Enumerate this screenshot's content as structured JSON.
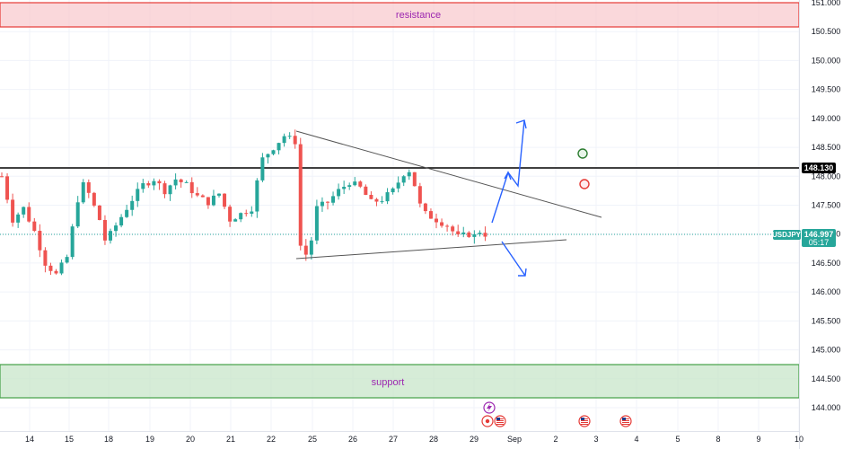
{
  "chart_data": {
    "type": "candlestick",
    "symbol": "USDJPY",
    "y_range": [
      143.7,
      151.1
    ],
    "y_ticks": [
      "151.000",
      "150.500",
      "150.000",
      "149.500",
      "149.000",
      "148.500",
      "148.000",
      "147.500",
      "147.000",
      "146.500",
      "146.000",
      "145.500",
      "145.000",
      "144.500",
      "144.000"
    ],
    "x_ticks": [
      "14",
      "15",
      "18",
      "19",
      "20",
      "21",
      "22",
      "25",
      "26",
      "27",
      "28",
      "29",
      "Sep",
      "2",
      "3",
      "4",
      "5",
      "8",
      "9",
      "10"
    ],
    "zones": {
      "resistance": {
        "label": "resistance",
        "low": 150.57,
        "high": 150.99
      },
      "support": {
        "label": "support",
        "low": 144.17,
        "high": 144.77
      }
    },
    "horizontal_level": {
      "value": "148.130"
    },
    "current_price": {
      "value": "146.997",
      "countdown": "05:17"
    },
    "price_path": [
      [
        0,
        148.0
      ],
      [
        2,
        147.25
      ],
      [
        4,
        147.45
      ],
      [
        6,
        147.05
      ],
      [
        8,
        146.5
      ],
      [
        10,
        146.3
      ],
      [
        12,
        146.6
      ],
      [
        14,
        147.6
      ],
      [
        15,
        147.85
      ],
      [
        16,
        147.7
      ],
      [
        18,
        147.25
      ],
      [
        19,
        146.9
      ],
      [
        20,
        147.0
      ],
      [
        22,
        147.3
      ],
      [
        24,
        147.6
      ],
      [
        26,
        147.85
      ],
      [
        28,
        147.95
      ],
      [
        30,
        147.75
      ],
      [
        32,
        147.95
      ],
      [
        34,
        147.85
      ],
      [
        36,
        147.65
      ],
      [
        38,
        147.55
      ],
      [
        40,
        147.7
      ],
      [
        42,
        147.25
      ],
      [
        44,
        147.35
      ],
      [
        46,
        147.45
      ],
      [
        47,
        147.9
      ],
      [
        48,
        148.3
      ],
      [
        50,
        148.5
      ],
      [
        52,
        148.7
      ],
      [
        54,
        148.6
      ],
      [
        55,
        146.8
      ],
      [
        56,
        146.65
      ],
      [
        57,
        146.9
      ],
      [
        58,
        147.45
      ],
      [
        60,
        147.55
      ],
      [
        62,
        147.75
      ],
      [
        64,
        147.9
      ],
      [
        66,
        147.8
      ],
      [
        68,
        147.55
      ],
      [
        70,
        147.6
      ],
      [
        72,
        147.75
      ],
      [
        74,
        148.05
      ],
      [
        75,
        148.1
      ],
      [
        76,
        147.85
      ],
      [
        77,
        147.5
      ],
      [
        78,
        147.35
      ],
      [
        80,
        147.25
      ],
      [
        82,
        147.15
      ],
      [
        84,
        146.95
      ],
      [
        86,
        147.0
      ],
      [
        87,
        146.97
      ],
      [
        88,
        147.05
      ],
      [
        89,
        146.997
      ]
    ],
    "events": [
      "lightning-icon",
      "us-flag-icon",
      "us-flag-icon",
      "us-flag-icon"
    ]
  }
}
